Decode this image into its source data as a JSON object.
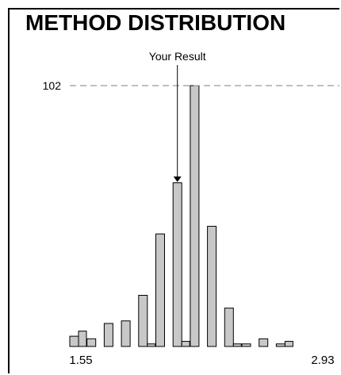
{
  "chart_data": {
    "type": "bar",
    "title": "METHOD DISTRIBUTION",
    "reference_line": {
      "value": 102,
      "label": "102"
    },
    "annotation": {
      "label": "Your Result",
      "index": 10
    },
    "xmin_label": "1.55",
    "xmax_label": "2.93",
    "ylim": [
      0,
      102
    ],
    "grid": false,
    "colors": {
      "bar_fill": "#c8c8c8",
      "bar_stroke": "#000000",
      "axis": "#000000",
      "ref_line": "#808080"
    },
    "bars": [
      {
        "main": 4,
        "minor": 6
      },
      {
        "main": 3,
        "minor": 0
      },
      {
        "main": 9,
        "minor": 0
      },
      {
        "main": 10,
        "minor": 0
      },
      {
        "main": 20,
        "minor": 1
      },
      {
        "main": 44,
        "minor": 0
      },
      {
        "main": 64,
        "minor": 2
      },
      {
        "main": 102,
        "minor": 0
      },
      {
        "main": 47,
        "minor": 0
      },
      {
        "main": 15,
        "minor": 1
      },
      {
        "main": 1,
        "minor": 0
      },
      {
        "main": 3,
        "minor": 0
      },
      {
        "main": 1,
        "minor": 2
      }
    ]
  }
}
